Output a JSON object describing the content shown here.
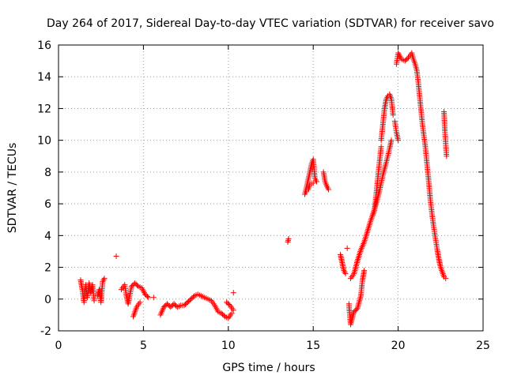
{
  "chart_data": {
    "type": "scatter",
    "title": "Day 264 of 2017, Sidereal Day-to-day VTEC variation (SDTVAR) for receiver savo",
    "xlabel": "GPS time / hours",
    "ylabel": "SDTVAR / TECUs",
    "xlim": [
      0,
      25
    ],
    "ylim": [
      -2,
      16
    ],
    "xticks": [
      0,
      5,
      10,
      15,
      20,
      25
    ],
    "yticks": [
      -2,
      0,
      2,
      4,
      6,
      8,
      10,
      12,
      14,
      16
    ],
    "grid": true,
    "marker": "+",
    "color": "#ff0000",
    "series": [
      {
        "name": "SDTVAR",
        "segments": [
          [
            [
              1.3,
              1.2
            ],
            [
              1.4,
              0.6
            ],
            [
              1.5,
              -0.2
            ],
            [
              1.6,
              0.9
            ],
            [
              1.7,
              0.1
            ],
            [
              1.8,
              1.0
            ],
            [
              1.9,
              0.4
            ],
            [
              2.0,
              0.9
            ],
            [
              2.1,
              -0.1
            ]
          ],
          [
            [
              2.3,
              0.2
            ],
            [
              2.4,
              0.6
            ],
            [
              2.5,
              -0.2
            ],
            [
              2.6,
              1.1
            ],
            [
              2.7,
              1.3
            ]
          ],
          [
            [
              3.7,
              0.6
            ],
            [
              3.9,
              0.9
            ],
            [
              4.0,
              0.2
            ],
            [
              4.1,
              -0.3
            ],
            [
              4.3,
              0.8
            ],
            [
              4.5,
              1.0
            ],
            [
              4.7,
              0.8
            ],
            [
              4.9,
              0.7
            ],
            [
              5.1,
              0.3
            ],
            [
              5.3,
              0.1
            ]
          ],
          [
            [
              4.4,
              -1.1
            ],
            [
              4.6,
              -0.5
            ],
            [
              4.8,
              -0.2
            ]
          ],
          [
            [
              5.6,
              0.1
            ]
          ],
          [
            [
              6.0,
              -1.0
            ],
            [
              6.2,
              -0.5
            ],
            [
              6.4,
              -0.3
            ],
            [
              6.6,
              -0.5
            ],
            [
              6.8,
              -0.3
            ],
            [
              7.0,
              -0.5
            ],
            [
              7.2,
              -0.4
            ],
            [
              7.4,
              -0.4
            ],
            [
              7.6,
              -0.2
            ],
            [
              7.8,
              0.0
            ],
            [
              8.0,
              0.2
            ],
            [
              8.2,
              0.3
            ],
            [
              8.4,
              0.2
            ],
            [
              8.6,
              0.1
            ],
            [
              8.8,
              0.0
            ],
            [
              9.0,
              -0.1
            ],
            [
              9.2,
              -0.4
            ],
            [
              9.4,
              -0.8
            ],
            [
              9.6,
              -0.9
            ],
            [
              9.8,
              -1.1
            ],
            [
              10.0,
              -1.2
            ],
            [
              10.2,
              -0.9
            ]
          ],
          [
            [
              9.9,
              -0.2
            ],
            [
              10.1,
              -0.4
            ],
            [
              10.3,
              -0.7
            ]
          ],
          [
            [
              10.3,
              0.4
            ]
          ],
          [
            [
              3.4,
              2.7
            ]
          ],
          [
            [
              13.5,
              3.6
            ],
            [
              13.55,
              3.8
            ]
          ],
          [
            [
              14.5,
              6.6
            ],
            [
              14.6,
              7.0
            ],
            [
              14.7,
              7.5
            ],
            [
              14.8,
              8.0
            ],
            [
              14.9,
              8.5
            ],
            [
              15.0,
              8.8
            ],
            [
              15.1,
              7.6
            ],
            [
              15.2,
              7.4
            ]
          ],
          [
            [
              14.6,
              6.8
            ],
            [
              14.7,
              6.9
            ],
            [
              14.8,
              7.2
            ],
            [
              14.9,
              7.3
            ],
            [
              15.0,
              7.3
            ]
          ],
          [
            [
              15.6,
              8.0
            ],
            [
              15.7,
              7.4
            ],
            [
              15.8,
              7.1
            ],
            [
              15.9,
              6.9
            ]
          ],
          [
            [
              16.6,
              2.8
            ],
            [
              16.7,
              2.3
            ],
            [
              16.8,
              1.8
            ],
            [
              16.9,
              1.6
            ]
          ],
          [
            [
              17.0,
              3.2
            ]
          ],
          [
            [
              17.1,
              -0.3
            ],
            [
              17.2,
              -1.6
            ],
            [
              17.4,
              -0.8
            ],
            [
              17.6,
              -0.6
            ],
            [
              17.8,
              0.2
            ],
            [
              17.9,
              1.2
            ],
            [
              18.0,
              1.8
            ]
          ],
          [
            [
              17.2,
              1.3
            ],
            [
              17.4,
              1.6
            ],
            [
              17.6,
              2.4
            ],
            [
              17.8,
              3.1
            ],
            [
              18.0,
              3.6
            ],
            [
              18.2,
              4.3
            ],
            [
              18.4,
              5.0
            ],
            [
              18.6,
              5.6
            ],
            [
              18.7,
              6.5
            ],
            [
              18.8,
              7.6
            ],
            [
              18.9,
              8.6
            ],
            [
              19.0,
              9.6
            ]
          ],
          [
            [
              18.5,
              5.3
            ],
            [
              18.7,
              6.0
            ],
            [
              18.9,
              6.8
            ],
            [
              19.1,
              7.8
            ],
            [
              19.3,
              8.6
            ],
            [
              19.5,
              9.5
            ],
            [
              19.6,
              10.0
            ]
          ],
          [
            [
              19.0,
              10.0
            ],
            [
              19.1,
              11.0
            ],
            [
              19.2,
              12.0
            ],
            [
              19.3,
              12.6
            ],
            [
              19.4,
              12.8
            ],
            [
              19.5,
              12.9
            ],
            [
              19.6,
              12.6
            ],
            [
              19.7,
              11.6
            ]
          ],
          [
            [
              19.8,
              11.2
            ],
            [
              19.9,
              10.5
            ],
            [
              20.0,
              10.0
            ]
          ],
          [
            [
              19.9,
              14.8
            ],
            [
              20.0,
              15.5
            ],
            [
              20.2,
              15.1
            ],
            [
              20.4,
              15.0
            ],
            [
              20.6,
              15.2
            ],
            [
              20.8,
              15.5
            ],
            [
              20.9,
              15.1
            ],
            [
              21.0,
              14.8
            ],
            [
              21.1,
              14.4
            ],
            [
              21.2,
              13.5
            ],
            [
              21.3,
              12.4
            ],
            [
              21.4,
              11.3
            ],
            [
              21.5,
              10.4
            ],
            [
              21.6,
              9.6
            ],
            [
              21.7,
              8.5
            ],
            [
              21.8,
              7.4
            ],
            [
              21.9,
              6.2
            ],
            [
              22.0,
              5.3
            ],
            [
              22.1,
              4.5
            ],
            [
              22.2,
              3.8
            ],
            [
              22.3,
              3.1
            ],
            [
              22.4,
              2.5
            ],
            [
              22.5,
              2.0
            ],
            [
              22.6,
              1.7
            ],
            [
              22.7,
              1.4
            ],
            [
              22.8,
              1.3
            ]
          ],
          [
            [
              22.7,
              11.8
            ],
            [
              22.75,
              10.6
            ],
            [
              22.8,
              9.8
            ],
            [
              22.85,
              9.0
            ]
          ]
        ]
      }
    ]
  }
}
